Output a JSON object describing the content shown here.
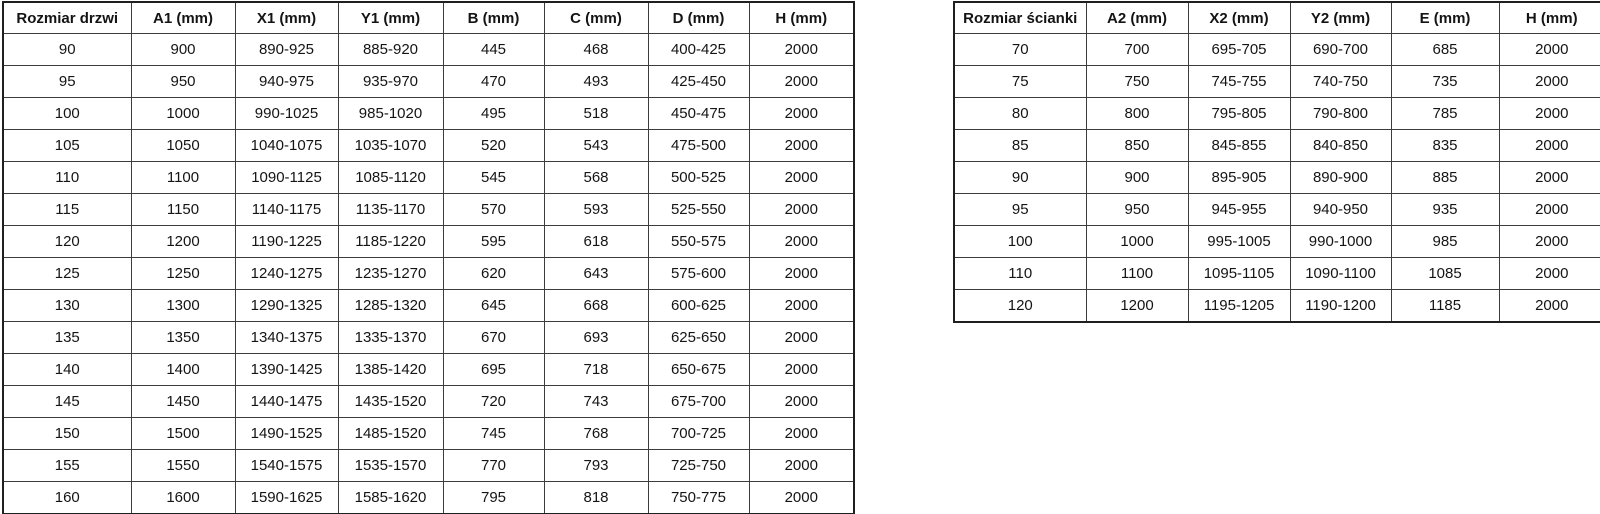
{
  "tables": [
    {
      "name": "door-dimensions-table",
      "headers": [
        "Rozmiar drzwi",
        "A1 (mm)",
        "X1 (mm)",
        "Y1 (mm)",
        "B (mm)",
        "C (mm)",
        "D (mm)",
        "H (mm)"
      ],
      "rows": [
        [
          "90",
          "900",
          "890-925",
          "885-920",
          "445",
          "468",
          "400-425",
          "2000"
        ],
        [
          "95",
          "950",
          "940-975",
          "935-970",
          "470",
          "493",
          "425-450",
          "2000"
        ],
        [
          "100",
          "1000",
          "990-1025",
          "985-1020",
          "495",
          "518",
          "450-475",
          "2000"
        ],
        [
          "105",
          "1050",
          "1040-1075",
          "1035-1070",
          "520",
          "543",
          "475-500",
          "2000"
        ],
        [
          "110",
          "1100",
          "1090-1125",
          "1085-1120",
          "545",
          "568",
          "500-525",
          "2000"
        ],
        [
          "115",
          "1150",
          "1140-1175",
          "1135-1170",
          "570",
          "593",
          "525-550",
          "2000"
        ],
        [
          "120",
          "1200",
          "1190-1225",
          "1185-1220",
          "595",
          "618",
          "550-575",
          "2000"
        ],
        [
          "125",
          "1250",
          "1240-1275",
          "1235-1270",
          "620",
          "643",
          "575-600",
          "2000"
        ],
        [
          "130",
          "1300",
          "1290-1325",
          "1285-1320",
          "645",
          "668",
          "600-625",
          "2000"
        ],
        [
          "135",
          "1350",
          "1340-1375",
          "1335-1370",
          "670",
          "693",
          "625-650",
          "2000"
        ],
        [
          "140",
          "1400",
          "1390-1425",
          "1385-1420",
          "695",
          "718",
          "650-675",
          "2000"
        ],
        [
          "145",
          "1450",
          "1440-1475",
          "1435-1520",
          "720",
          "743",
          "675-700",
          "2000"
        ],
        [
          "150",
          "1500",
          "1490-1525",
          "1485-1520",
          "745",
          "768",
          "700-725",
          "2000"
        ],
        [
          "155",
          "1550",
          "1540-1575",
          "1535-1570",
          "770",
          "793",
          "725-750",
          "2000"
        ],
        [
          "160",
          "1600",
          "1590-1625",
          "1585-1620",
          "795",
          "818",
          "750-775",
          "2000"
        ]
      ]
    },
    {
      "name": "wall-dimensions-table",
      "headers": [
        "Rozmiar ścianki",
        "A2 (mm)",
        "X2 (mm)",
        "Y2 (mm)",
        "E (mm)",
        "H (mm)"
      ],
      "rows": [
        [
          "70",
          "700",
          "695-705",
          "690-700",
          "685",
          "2000"
        ],
        [
          "75",
          "750",
          "745-755",
          "740-750",
          "735",
          "2000"
        ],
        [
          "80",
          "800",
          "795-805",
          "790-800",
          "785",
          "2000"
        ],
        [
          "85",
          "850",
          "845-855",
          "840-850",
          "835",
          "2000"
        ],
        [
          "90",
          "900",
          "895-905",
          "890-900",
          "885",
          "2000"
        ],
        [
          "95",
          "950",
          "945-955",
          "940-950",
          "935",
          "2000"
        ],
        [
          "100",
          "1000",
          "995-1005",
          "990-1000",
          "985",
          "2000"
        ],
        [
          "110",
          "1100",
          "1095-1105",
          "1090-1100",
          "1085",
          "2000"
        ],
        [
          "120",
          "1200",
          "1195-1205",
          "1190-1200",
          "1185",
          "2000"
        ]
      ]
    }
  ],
  "colors": {
    "border_inner": "#3c3c3c",
    "border_outer": "#1f1f1f",
    "text": "#141414",
    "background": "#ffffff"
  }
}
